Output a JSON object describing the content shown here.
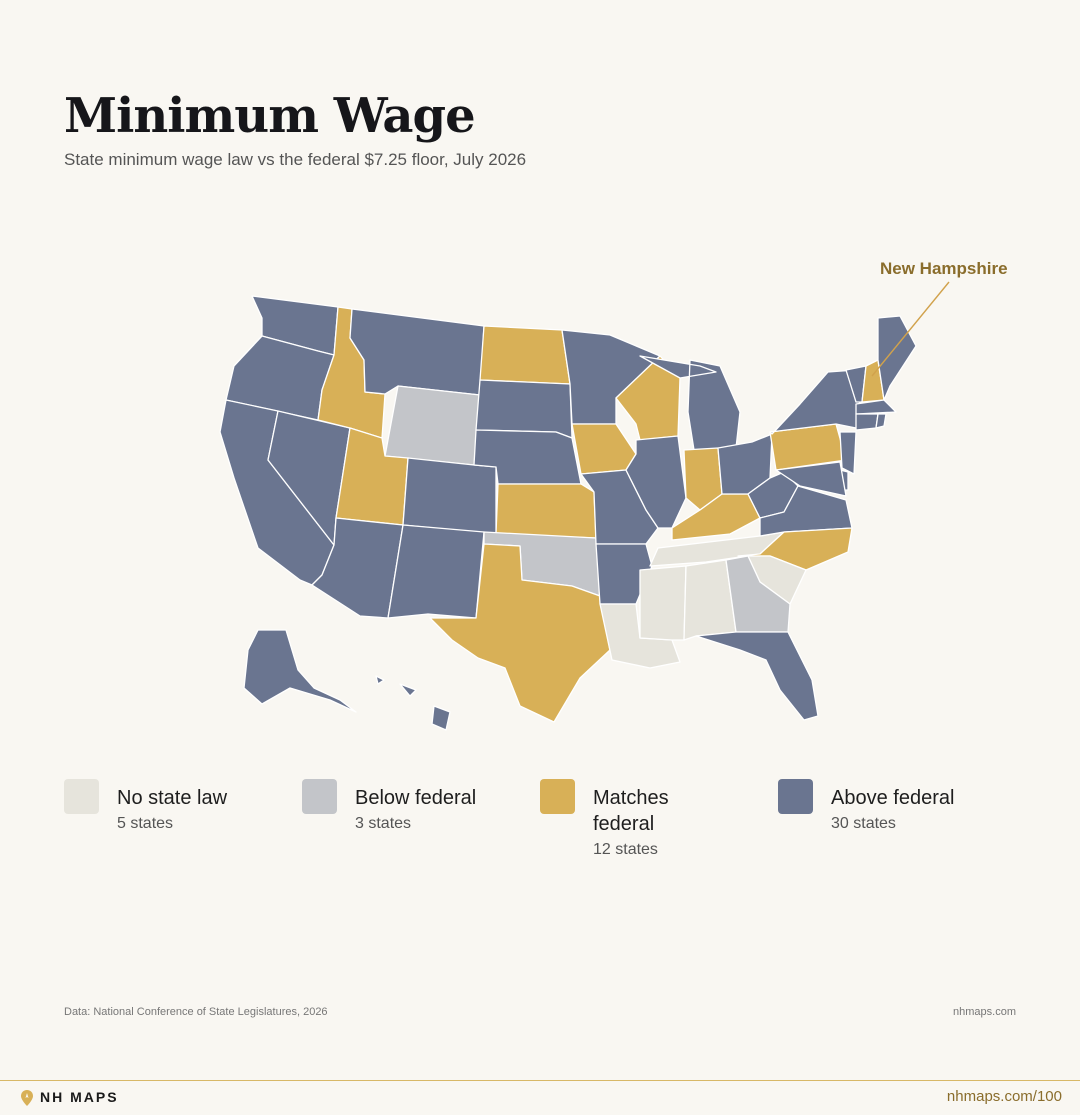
{
  "header": {
    "title": "Minimum Wage",
    "subtitle": "State minimum wage law vs the federal $7.25 floor, July 2026"
  },
  "callout": {
    "label": "New Hampshire"
  },
  "colors": {
    "no_law": "#e6e4dc",
    "below": "#c3c5c9",
    "matches": "#d8b057",
    "above": "#6a7590",
    "border": "#ffffff"
  },
  "legend": [
    {
      "label": "No state law",
      "count": "5 states",
      "category": "no_law"
    },
    {
      "label": "Below federal",
      "count": "3 states",
      "category": "below"
    },
    {
      "label": "Matches federal",
      "count": "12 states",
      "category": "matches"
    },
    {
      "label": "Above federal",
      "count": "30 states",
      "category": "above"
    }
  ],
  "states": {
    "WA": "above",
    "OR": "above",
    "CA": "above",
    "NV": "above",
    "ID": "matches",
    "MT": "above",
    "WY": "below",
    "UT": "matches",
    "AZ": "above",
    "CO": "above",
    "NM": "above",
    "ND": "matches",
    "SD": "above",
    "NE": "above",
    "KS": "matches",
    "OK": "below",
    "TX": "matches",
    "MN": "above",
    "IA": "matches",
    "MO": "above",
    "AR": "above",
    "LA": "no_law",
    "WI": "matches",
    "IL": "above",
    "MS": "no_law",
    "MI": "above",
    "IN": "matches",
    "KY": "matches",
    "TN": "no_law",
    "AL": "no_law",
    "OH": "above",
    "WV": "above",
    "VA": "above",
    "NC": "matches",
    "SC": "no_law",
    "GA": "below",
    "FL": "above",
    "PA": "matches",
    "NY": "above",
    "VT": "above",
    "NH": "matches",
    "ME": "above",
    "MA": "above",
    "CT": "above",
    "RI": "above",
    "NJ": "above",
    "DE": "above",
    "MD": "above",
    "AK": "above",
    "HI": "above"
  },
  "footer": {
    "source": "Data: National Conference of State Legislatures, 2026",
    "site": "nhmaps.com",
    "brand": "NH MAPS",
    "url": "nhmaps.com/100"
  }
}
